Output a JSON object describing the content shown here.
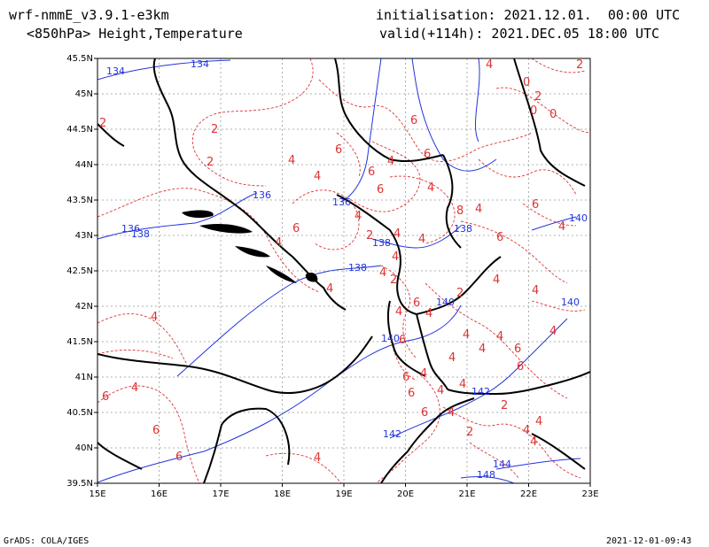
{
  "header": {
    "model": "wrf-nmmE_v3.9.1-e3km",
    "level_fields": "<850hPa> Height,Temperature",
    "init": "initialisation: 2021.12.01.  00:00 UTC",
    "valid": "valid(+114h): 2021.DEC.05 18:00 UTC"
  },
  "footer": {
    "left": "GrADS: COLA/IGES",
    "right": "2021-12-01-09:43"
  },
  "colors": {
    "height_contour": "#2233dd",
    "temperature_contour": "#dd3333",
    "coastline": "#000000",
    "grid": "#999999"
  },
  "map": {
    "lon_labels": [
      "15E",
      "16E",
      "17E",
      "18E",
      "19E",
      "20E",
      "21E",
      "22E",
      "23E"
    ],
    "lat_labels": [
      "45.5N",
      "45N",
      "44.5N",
      "44N",
      "43.5N",
      "43N",
      "42.5N",
      "42N",
      "41.5N",
      "41N",
      "40.5N",
      "40N",
      "39.5N"
    ],
    "height_labels": [
      "134",
      "134",
      "136",
      "136",
      "136",
      "138",
      "138",
      "138",
      "138",
      "140",
      "140",
      "140",
      "142",
      "142",
      "144",
      "148",
      "140"
    ],
    "temp_labels": [
      "4",
      "2",
      "0",
      "2",
      "0",
      "0",
      "2",
      "2",
      "2",
      "4",
      "4",
      "6",
      "6",
      "6",
      "4",
      "6",
      "4",
      "6",
      "8",
      "4",
      "6",
      "4",
      "6",
      "4",
      "4",
      "4",
      "6",
      "4",
      "4",
      "2",
      "4",
      "4",
      "4",
      "4",
      "4",
      "6",
      "6",
      "4",
      "4",
      "4",
      "4",
      "6",
      "6",
      "4",
      "2",
      "2",
      "4",
      "4",
      "4",
      "4",
      "4",
      "6",
      "6",
      "6",
      "4",
      "6",
      "6",
      "4",
      "2",
      "4",
      "6",
      "4",
      "4",
      "2",
      "4"
    ]
  }
}
